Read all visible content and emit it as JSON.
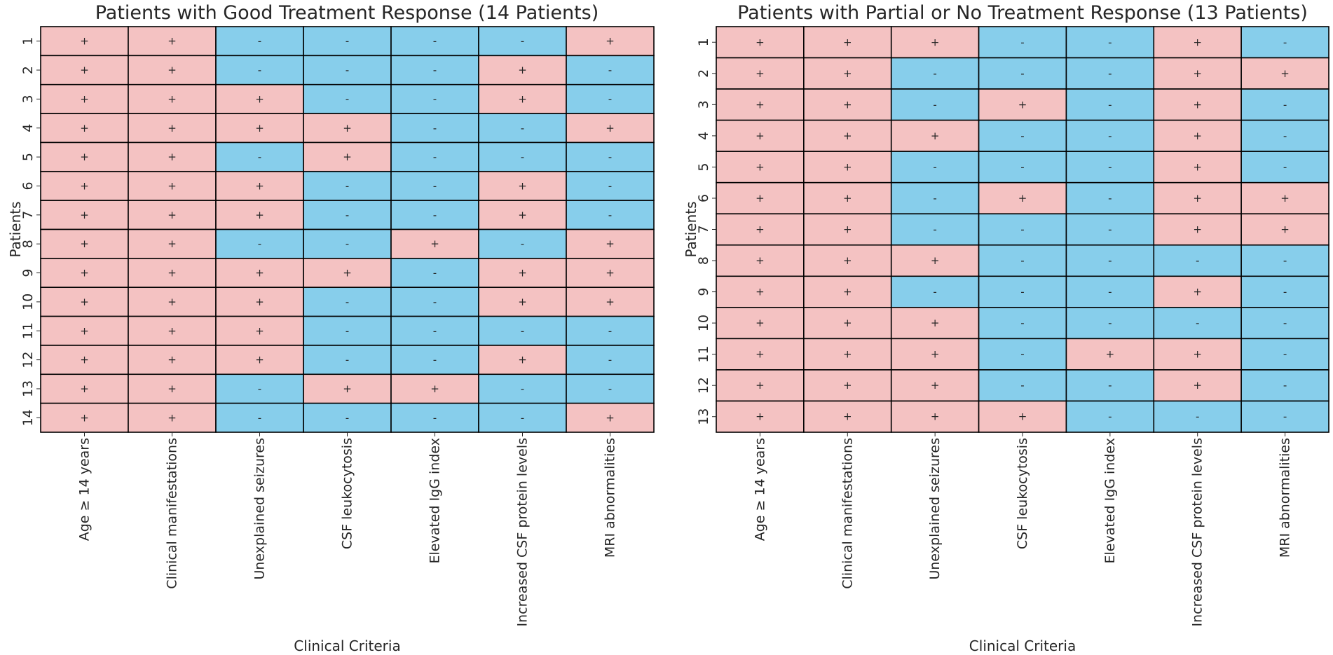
{
  "colors": {
    "positive": "#f4c2c2",
    "negative": "#87ceeb",
    "grid": "#000000",
    "text": "#262626"
  },
  "chart_data": [
    {
      "type": "heatmap",
      "title": "Patients with Good Treatment Response (14 Patients)",
      "xlabel": "Clinical Criteria",
      "ylabel": "Patients",
      "columns": [
        "Age ≥ 14 years",
        "Clinical manifestations",
        "Unexplained seizures",
        "CSF leukocytosis",
        "Elevated IgG index",
        "Increased CSF protein levels",
        "MRI abnormalities"
      ],
      "rows": [
        "1",
        "2",
        "3",
        "4",
        "5",
        "6",
        "7",
        "8",
        "9",
        "10",
        "11",
        "12",
        "13",
        "14"
      ],
      "values": [
        [
          "+",
          "+",
          "-",
          "-",
          "-",
          "-",
          "+"
        ],
        [
          "+",
          "+",
          "-",
          "-",
          "-",
          "+",
          "-"
        ],
        [
          "+",
          "+",
          "+",
          "-",
          "-",
          "+",
          "-"
        ],
        [
          "+",
          "+",
          "+",
          "+",
          "-",
          "-",
          "+"
        ],
        [
          "+",
          "+",
          "-",
          "+",
          "-",
          "-",
          "-"
        ],
        [
          "+",
          "+",
          "+",
          "-",
          "-",
          "+",
          "-"
        ],
        [
          "+",
          "+",
          "+",
          "-",
          "-",
          "+",
          "-"
        ],
        [
          "+",
          "+",
          "-",
          "-",
          "+",
          "-",
          "+"
        ],
        [
          "+",
          "+",
          "+",
          "+",
          "-",
          "+",
          "+"
        ],
        [
          "+",
          "+",
          "+",
          "-",
          "-",
          "+",
          "+"
        ],
        [
          "+",
          "+",
          "+",
          "-",
          "-",
          "-",
          "-"
        ],
        [
          "+",
          "+",
          "+",
          "-",
          "-",
          "+",
          "-"
        ],
        [
          "+",
          "+",
          "-",
          "+",
          "+",
          "-",
          "-"
        ],
        [
          "+",
          "+",
          "-",
          "-",
          "-",
          "-",
          "+"
        ]
      ]
    },
    {
      "type": "heatmap",
      "title": "Patients with Partial or No Treatment Response (13 Patients)",
      "xlabel": "Clinical Criteria",
      "ylabel": "Patients",
      "columns": [
        "Age ≥ 14 years",
        "Clinical manifestations",
        "Unexplained seizures",
        "CSF leukocytosis",
        "Elevated IgG index",
        "Increased CSF protein levels",
        "MRI abnormalities"
      ],
      "rows": [
        "1",
        "2",
        "3",
        "4",
        "5",
        "6",
        "7",
        "8",
        "9",
        "10",
        "11",
        "12",
        "13"
      ],
      "values": [
        [
          "+",
          "+",
          "+",
          "-",
          "-",
          "+",
          "-"
        ],
        [
          "+",
          "+",
          "-",
          "-",
          "-",
          "+",
          "+"
        ],
        [
          "+",
          "+",
          "-",
          "+",
          "-",
          "+",
          "-"
        ],
        [
          "+",
          "+",
          "+",
          "-",
          "-",
          "+",
          "-"
        ],
        [
          "+",
          "+",
          "-",
          "-",
          "-",
          "+",
          "-"
        ],
        [
          "+",
          "+",
          "-",
          "+",
          "-",
          "+",
          "+"
        ],
        [
          "+",
          "+",
          "-",
          "-",
          "-",
          "+",
          "+"
        ],
        [
          "+",
          "+",
          "+",
          "-",
          "-",
          "-",
          "-"
        ],
        [
          "+",
          "+",
          "-",
          "-",
          "-",
          "+",
          "-"
        ],
        [
          "+",
          "+",
          "+",
          "-",
          "-",
          "-",
          "-"
        ],
        [
          "+",
          "+",
          "+",
          "-",
          "+",
          "+",
          "-"
        ],
        [
          "+",
          "+",
          "+",
          "-",
          "-",
          "+",
          "-"
        ],
        [
          "+",
          "+",
          "+",
          "+",
          "-",
          "-",
          "-"
        ]
      ]
    }
  ]
}
